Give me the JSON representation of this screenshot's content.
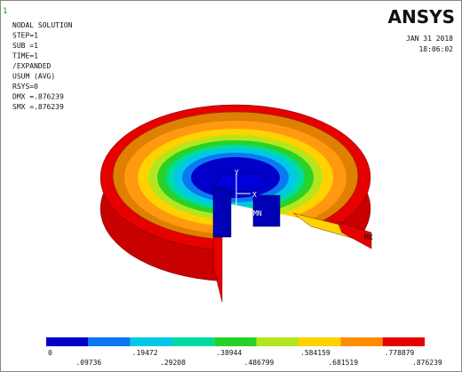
{
  "window_number": "1",
  "info": [
    "NODAL SOLUTION",
    "STEP=1",
    "SUB =1",
    "TIME=1",
    "/EXPANDED",
    "USUM     (AVG)",
    "RSYS=0",
    "DMX =.876239",
    "SMX =.876239"
  ],
  "logo": "ANSYS",
  "date": "JAN 31 2018",
  "time": "18:06:02",
  "model_labels": {
    "y_axis": "Y",
    "x_axis": "X",
    "min": "MN",
    "max": "MX"
  },
  "legend": {
    "colors": [
      "#0000c8",
      "#0a78f0",
      "#00c8e6",
      "#00dca0",
      "#28d228",
      "#b4e61e",
      "#ffd200",
      "#ff8c00",
      "#e60000"
    ],
    "labels": [
      "0",
      ".09736",
      ".19472",
      ".29208",
      ".38944",
      ".486799",
      ".584159",
      ".681519",
      ".778879",
      ".876239"
    ]
  }
}
